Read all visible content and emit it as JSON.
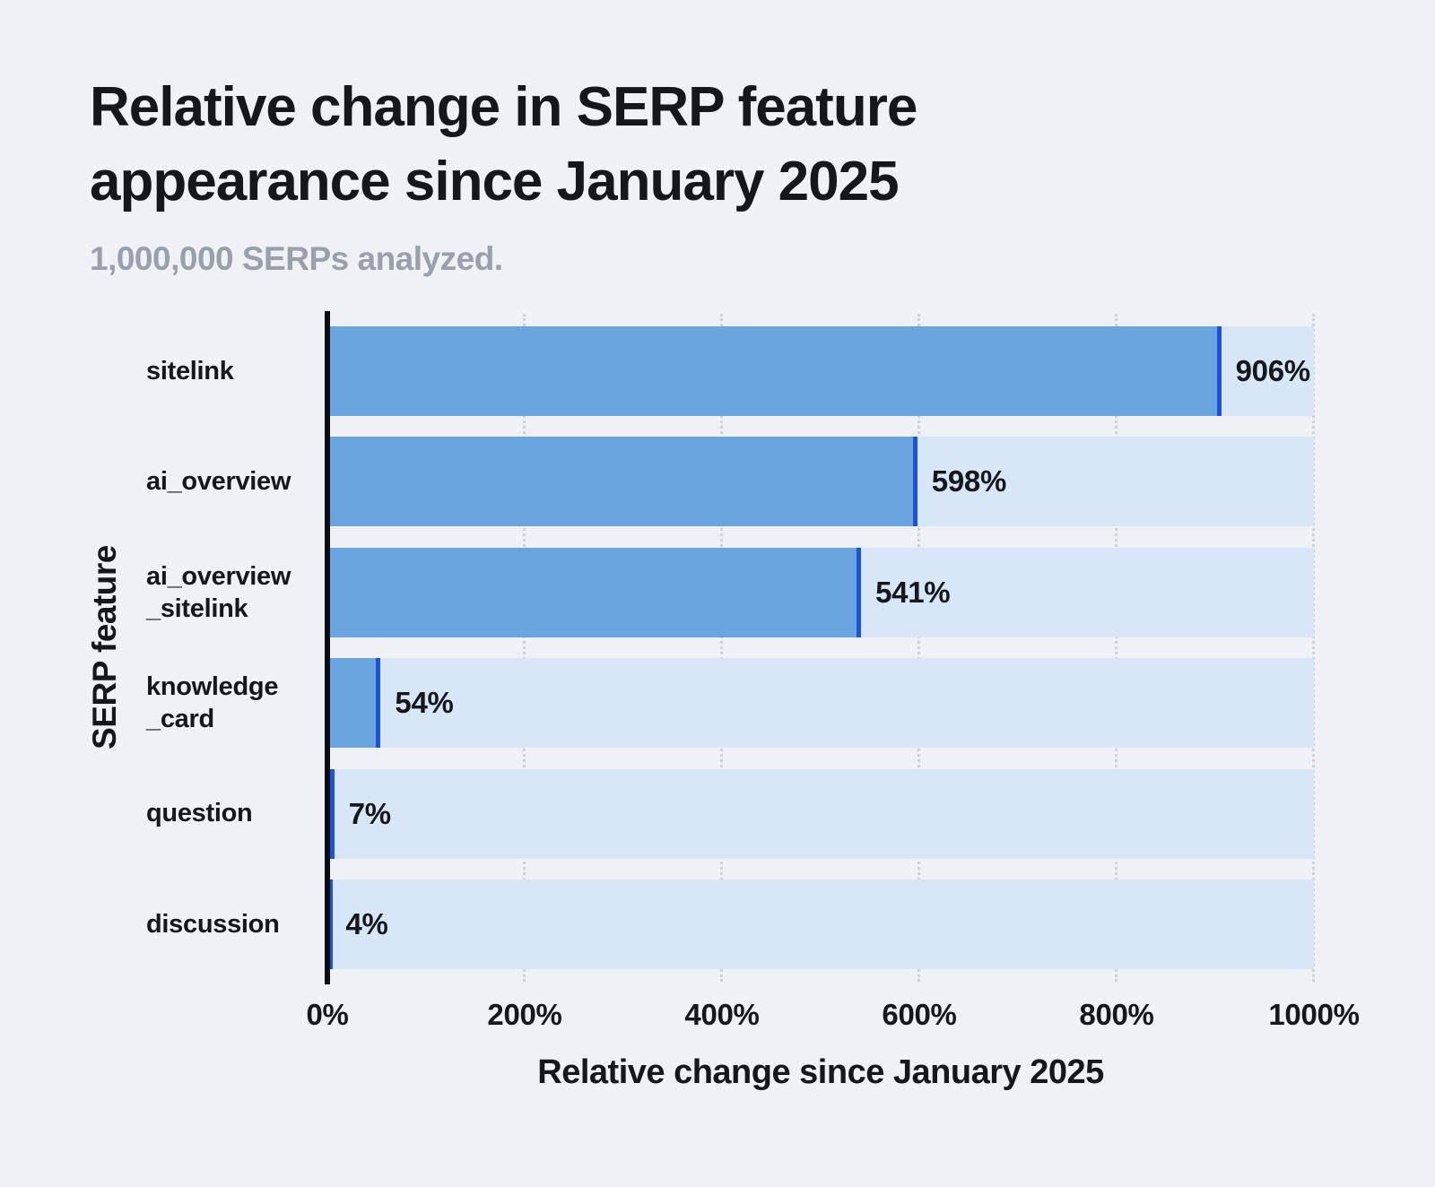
{
  "chart_data": {
    "type": "bar",
    "orientation": "horizontal",
    "title": "Relative change in SERP feature\nappearance since January 2025",
    "subtitle": "1,000,000 SERPs analyzed.",
    "categories": [
      "sitelink",
      "ai_overview",
      "ai_overview_sitelink",
      "knowledge_card",
      "question",
      "discussion"
    ],
    "category_display": [
      "sitelink",
      "ai_overview",
      "ai_overview\n_sitelink",
      "knowledge\n_card",
      "question",
      "discussion"
    ],
    "values": [
      906,
      598,
      541,
      54,
      7,
      4
    ],
    "value_labels": [
      "906%",
      "598%",
      "541%",
      "54%",
      "7%",
      "4%"
    ],
    "xlabel": "Relative change since January 2025",
    "ylabel": "SERP feature",
    "xlim": [
      0,
      1000
    ],
    "x_ticks": [
      0,
      200,
      400,
      600,
      800,
      1000
    ],
    "x_tick_labels": [
      "0%",
      "200%",
      "400%",
      "600%",
      "800%",
      "1000%"
    ],
    "grid": "vertical dotted gridlines every 200%, behind bars",
    "legend": "none",
    "colors": {
      "bar_fill": "#6aa5e0",
      "bar_cap": "#1d52d9",
      "track": "#d8e7f8",
      "background": "#f0f1f4",
      "text": "#15171c",
      "subtitle_text": "#9aa0ab",
      "gridline": "#ced2d8",
      "axis_line": "#0b0c0f"
    }
  }
}
